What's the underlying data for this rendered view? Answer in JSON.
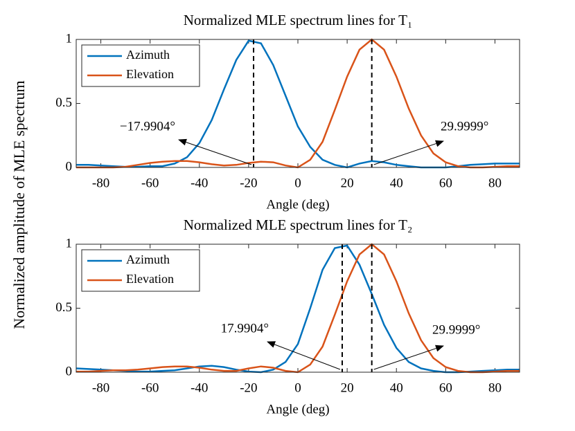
{
  "chart_data": [
    {
      "type": "line",
      "title": "Normalized MLE spectrum lines for T₁",
      "xlabel": "Angle (deg)",
      "ylabel": "Normalized amplitude of MLE spectrum",
      "x": [
        -90,
        -85,
        -80,
        -75,
        -70,
        -65,
        -60,
        -55,
        -50,
        -45,
        -40,
        -35,
        -30,
        -25,
        -20,
        -15,
        -10,
        -5,
        0,
        5,
        10,
        15,
        20,
        25,
        30,
        35,
        40,
        45,
        50,
        55,
        60,
        65,
        70,
        75,
        80,
        85,
        90
      ],
      "series": [
        {
          "name": "Azimuth",
          "color": "#0072BD",
          "values": [
            0.02,
            0.02,
            0.015,
            0.01,
            0.005,
            0.005,
            0.01,
            0.01,
            0.03,
            0.08,
            0.19,
            0.37,
            0.61,
            0.84,
            0.99,
            0.97,
            0.8,
            0.56,
            0.32,
            0.16,
            0.06,
            0.02,
            0,
            0.03,
            0.05,
            0.04,
            0.02,
            0.01,
            0,
            0,
            0,
            0.01,
            0.02,
            0.025,
            0.03,
            0.03,
            0.03
          ]
        },
        {
          "name": "Elevation",
          "color": "#D95319",
          "values": [
            0,
            0,
            0,
            0,
            0.005,
            0.02,
            0.035,
            0.045,
            0.05,
            0.05,
            0.04,
            0.025,
            0.015,
            0.02,
            0.035,
            0.045,
            0.04,
            0.015,
            0,
            0.06,
            0.2,
            0.45,
            0.71,
            0.92,
            1,
            0.92,
            0.71,
            0.46,
            0.25,
            0.11,
            0.04,
            0.01,
            0,
            0,
            0.005,
            0.01,
            0.01
          ]
        }
      ],
      "annotations": [
        {
          "label": "−17.9904°",
          "value": -17.9904
        },
        {
          "label": "29.9999°",
          "value": 29.9999
        }
      ],
      "xlim": [
        -90,
        90
      ],
      "xticks": [
        -80,
        -60,
        -40,
        -20,
        0,
        20,
        40,
        60,
        80
      ],
      "ylim": [
        0,
        1
      ],
      "yticks": [
        0,
        0.5,
        1
      ],
      "legend": "upper left"
    },
    {
      "type": "line",
      "title": "Normalized MLE spectrum lines for T₂",
      "xlabel": "Angle (deg)",
      "x": [
        -90,
        -85,
        -80,
        -75,
        -70,
        -65,
        -60,
        -55,
        -50,
        -45,
        -40,
        -35,
        -30,
        -25,
        -20,
        -15,
        -10,
        -5,
        0,
        5,
        10,
        15,
        20,
        25,
        30,
        35,
        40,
        45,
        50,
        55,
        60,
        65,
        70,
        75,
        80,
        85,
        90
      ],
      "series": [
        {
          "name": "Azimuth",
          "color": "#0072BD",
          "values": [
            0.03,
            0.025,
            0.02,
            0.015,
            0.01,
            0.005,
            0.005,
            0.01,
            0.015,
            0.03,
            0.045,
            0.05,
            0.04,
            0.02,
            0.005,
            0,
            0.02,
            0.08,
            0.22,
            0.5,
            0.8,
            0.97,
            0.99,
            0.84,
            0.61,
            0.37,
            0.19,
            0.08,
            0.03,
            0.01,
            0,
            0,
            0.005,
            0.01,
            0.015,
            0.02,
            0.02
          ]
        },
        {
          "name": "Elevation",
          "color": "#D95319",
          "values": [
            0.005,
            0.005,
            0.01,
            0.015,
            0.015,
            0.02,
            0.03,
            0.04,
            0.045,
            0.045,
            0.035,
            0.02,
            0.01,
            0.01,
            0.03,
            0.045,
            0.035,
            0.01,
            0,
            0.06,
            0.2,
            0.45,
            0.71,
            0.92,
            1,
            0.92,
            0.71,
            0.46,
            0.25,
            0.11,
            0.04,
            0.01,
            0,
            0,
            0.005,
            0.01,
            0.01
          ]
        }
      ],
      "annotations": [
        {
          "label": "17.9904°",
          "value": 17.9904
        },
        {
          "label": "29.9999°",
          "value": 29.9999
        }
      ],
      "xlim": [
        -90,
        90
      ],
      "xticks": [
        -80,
        -60,
        -40,
        -20,
        0,
        20,
        40,
        60,
        80
      ],
      "ylim": [
        0,
        1
      ],
      "yticks": [
        0,
        0.5,
        1
      ],
      "legend": "upper left"
    }
  ]
}
